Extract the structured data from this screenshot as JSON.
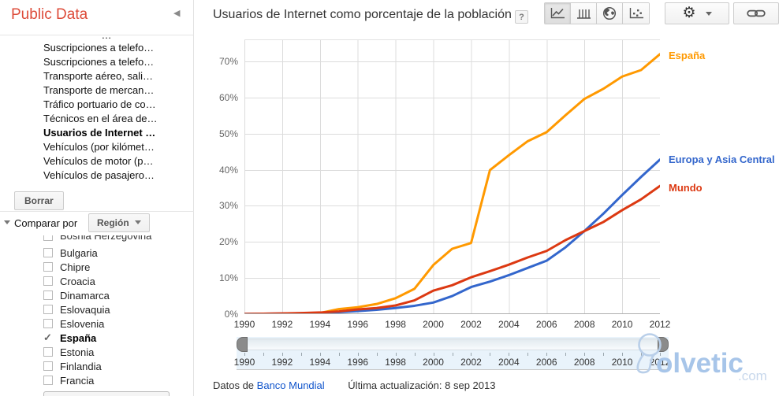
{
  "sidebar": {
    "title": "Public Data",
    "indicators_partial": "…",
    "indicators": [
      {
        "label": "Suscripciones a telefo…",
        "selected": false
      },
      {
        "label": "Suscripciones a telefo…",
        "selected": false
      },
      {
        "label": "Transporte aéreo, sali…",
        "selected": false
      },
      {
        "label": "Transporte de mercan…",
        "selected": false
      },
      {
        "label": "Tráfico portuario de co…",
        "selected": false
      },
      {
        "label": "Técnicos en el área de…",
        "selected": false
      },
      {
        "label": "Usuarios de Internet …",
        "selected": true
      },
      {
        "label": "Vehículos (por kilómet…",
        "selected": false
      },
      {
        "label": "Vehículos de motor (p…",
        "selected": false
      },
      {
        "label": "Vehículos de pasajero…",
        "selected": false
      }
    ],
    "clear_button": "Borrar",
    "compare_label": "Comparar por",
    "region_dropdown": "Región",
    "countries_partial": "Bosnia Herzegovina",
    "countries": [
      {
        "label": "Bulgaria",
        "checked": false
      },
      {
        "label": "Chipre",
        "checked": false
      },
      {
        "label": "Croacia",
        "checked": false
      },
      {
        "label": "Dinamarca",
        "checked": false
      },
      {
        "label": "Eslovaquia",
        "checked": false
      },
      {
        "label": "Eslovenia",
        "checked": false
      },
      {
        "label": "España",
        "checked": true
      },
      {
        "label": "Estonia",
        "checked": false
      },
      {
        "label": "Finlandia",
        "checked": false
      },
      {
        "label": "Francia",
        "checked": false
      }
    ]
  },
  "header": {
    "title": "Usuarios de Internet como porcentaje de la población",
    "help_label": "?"
  },
  "toolbar": {
    "chart_types": [
      {
        "icon": "line-chart-icon",
        "selected": true
      },
      {
        "icon": "bar-chart-icon",
        "selected": false
      },
      {
        "icon": "map-icon",
        "selected": false
      },
      {
        "icon": "scatter-chart-icon",
        "selected": false
      }
    ],
    "settings_icon": "gear-icon",
    "link_icon": "link-icon"
  },
  "chart_data": {
    "type": "line",
    "title": "Usuarios de Internet como porcentaje de la población",
    "x": [
      1990,
      1991,
      1992,
      1993,
      1994,
      1995,
      1996,
      1997,
      1998,
      1999,
      2000,
      2001,
      2002,
      2003,
      2004,
      2005,
      2006,
      2007,
      2008,
      2009,
      2010,
      2011,
      2012
    ],
    "series": [
      {
        "name": "España",
        "color": "#ff9900",
        "values": [
          0.0,
          0.1,
          0.1,
          0.2,
          0.3,
          1.4,
          1.9,
          2.8,
          4.4,
          7.0,
          13.6,
          18.1,
          19.7,
          39.9,
          44.0,
          47.9,
          50.4,
          55.1,
          59.6,
          62.4,
          65.8,
          67.6,
          72.0
        ]
      },
      {
        "name": "Europa y Asia Central",
        "color": "#3366cc",
        "values": [
          0.05,
          0.1,
          0.15,
          0.25,
          0.35,
          0.55,
          0.85,
          1.2,
          1.7,
          2.3,
          3.2,
          5.0,
          7.5,
          9.0,
          10.8,
          12.8,
          14.8,
          18.5,
          23.0,
          27.8,
          33.0,
          38.0,
          42.8
        ]
      },
      {
        "name": "Mundo",
        "color": "#dc3912",
        "values": [
          0.05,
          0.1,
          0.2,
          0.3,
          0.45,
          0.75,
          1.3,
          1.7,
          2.4,
          3.8,
          6.5,
          8.0,
          10.2,
          11.9,
          13.7,
          15.7,
          17.5,
          20.5,
          23.0,
          25.5,
          28.8,
          31.8,
          35.5
        ]
      }
    ],
    "ylim": [
      0,
      76
    ],
    "ytick_step": 10,
    "yticks": [
      "0%",
      "10%",
      "20%",
      "30%",
      "40%",
      "50%",
      "60%",
      "70%"
    ],
    "xticks": [
      1990,
      1992,
      1994,
      1996,
      1998,
      2000,
      2002,
      2004,
      2006,
      2008,
      2010,
      2012
    ],
    "grid": true,
    "legend_position": "right"
  },
  "slider": {
    "range_start": 1990,
    "range_end": 2012
  },
  "footer": {
    "source_prefix": "Datos de",
    "source_link": "Banco Mundial",
    "updated": "Última actualización: 8 sep 2013"
  },
  "watermark": {
    "text": "olvetic",
    "tld": ".com"
  },
  "colors": {
    "espana": "#ff9900",
    "europa_asia_central": "#3366cc",
    "mundo": "#dc3912",
    "brand_red": "#dd4b39",
    "link_blue": "#1155cc"
  }
}
